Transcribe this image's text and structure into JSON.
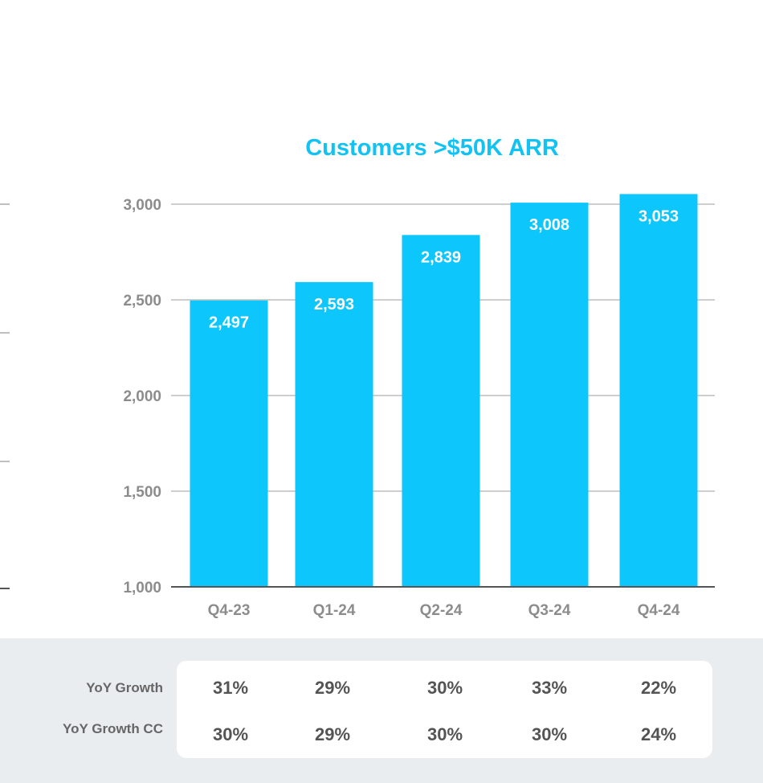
{
  "chart_data": {
    "type": "bar",
    "title": "Customers >$50K ARR",
    "categories": [
      "Q4-23",
      "Q1-24",
      "Q2-24",
      "Q3-24",
      "Q4-24"
    ],
    "values": [
      2497,
      2593,
      2839,
      3008,
      3053
    ],
    "value_labels": [
      "2,497",
      "2,593",
      "2,839",
      "3,008",
      "3,053"
    ],
    "ylim": [
      1000,
      3000
    ],
    "yticks": [
      1000,
      1500,
      2000,
      2500,
      3000
    ],
    "ytick_labels": [
      "1,000",
      "1,500",
      "2,000",
      "2,500",
      "3,000"
    ],
    "grid": true,
    "xlabel": "",
    "ylabel": ""
  },
  "colors": {
    "bar": "#0dc6fc",
    "title": "#12c2f2",
    "grid": "#bdbdbd",
    "axis_text": "#8c8c8c",
    "band": "#eaedf0"
  },
  "growth_table": {
    "rows": [
      {
        "label": "YoY Growth",
        "values": [
          "31%",
          "29%",
          "30%",
          "33%",
          "22%"
        ]
      },
      {
        "label": "YoY Growth CC",
        "values": [
          "30%",
          "29%",
          "30%",
          "30%",
          "24%"
        ]
      }
    ]
  }
}
